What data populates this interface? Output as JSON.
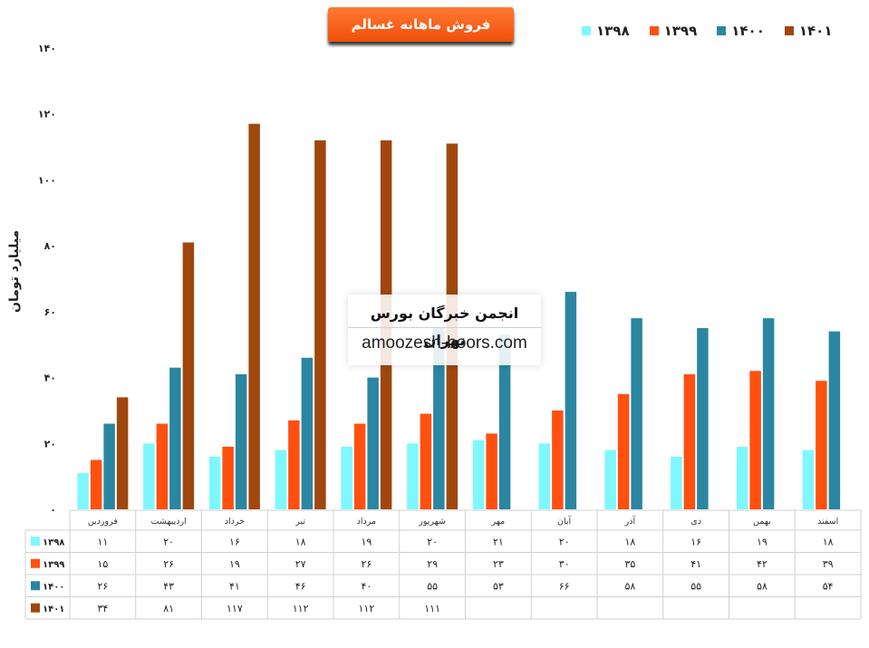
{
  "chart_data": {
    "type": "bar",
    "title": "فروش ماهانه غسالم",
    "ylabel": "میلیارد تومان",
    "ylim": [
      0,
      140
    ],
    "yticks": [
      "۰",
      "۲۰",
      "۴۰",
      "۶۰",
      "۸۰",
      "۱۰۰",
      "۱۲۰",
      "۱۴۰"
    ],
    "grid": false,
    "legend_position": "top-right",
    "categories": [
      "فروردین",
      "اردیبهشت",
      "خرداد",
      "تیر",
      "مرداد",
      "شهریور",
      "مهر",
      "آبان",
      "آذر",
      "دی",
      "بهمن",
      "اسفند"
    ],
    "series": [
      {
        "name": "۱۳۹۸",
        "color": "#7ff7ff",
        "values": [
          11,
          20,
          16,
          18,
          19,
          20,
          21,
          20,
          18,
          16,
          19,
          18
        ],
        "labels": [
          "۱۱",
          "۲۰",
          "۱۶",
          "۱۸",
          "۱۹",
          "۲۰",
          "۲۱",
          "۲۰",
          "۱۸",
          "۱۶",
          "۱۹",
          "۱۸"
        ]
      },
      {
        "name": "۱۳۹۹",
        "color": "#ff5010",
        "values": [
          15,
          26,
          19,
          27,
          26,
          29,
          23,
          30,
          35,
          41,
          42,
          39
        ],
        "labels": [
          "۱۵",
          "۲۶",
          "۱۹",
          "۲۷",
          "۲۶",
          "۲۹",
          "۲۳",
          "۳۰",
          "۳۵",
          "۴۱",
          "۴۲",
          "۳۹"
        ]
      },
      {
        "name": "۱۴۰۰",
        "color": "#2b86a1",
        "values": [
          26,
          43,
          41,
          46,
          40,
          55,
          53,
          66,
          58,
          55,
          58,
          54
        ],
        "labels": [
          "۲۶",
          "۴۳",
          "۴۱",
          "۴۶",
          "۴۰",
          "۵۵",
          "۵۳",
          "۶۶",
          "۵۸",
          "۵۵",
          "۵۸",
          "۵۴"
        ]
      },
      {
        "name": "۱۴۰۱",
        "color": "#a0470e",
        "values": [
          34,
          81,
          117,
          112,
          112,
          111,
          null,
          null,
          null,
          null,
          null,
          null
        ],
        "labels": [
          "۳۴",
          "۸۱",
          "۱۱۷",
          "۱۱۲",
          "۱۱۲",
          "۱۱۱",
          "",
          "",
          "",
          "",
          "",
          ""
        ]
      }
    ]
  },
  "legend_order": [
    "۱۳۹۸",
    "۱۳۹۹",
    "۱۴۰۰",
    "۱۴۰۱"
  ],
  "watermark": {
    "line1": "انجمن خبرگان بورس تهران",
    "line2": "amoozesh-boors.com"
  }
}
